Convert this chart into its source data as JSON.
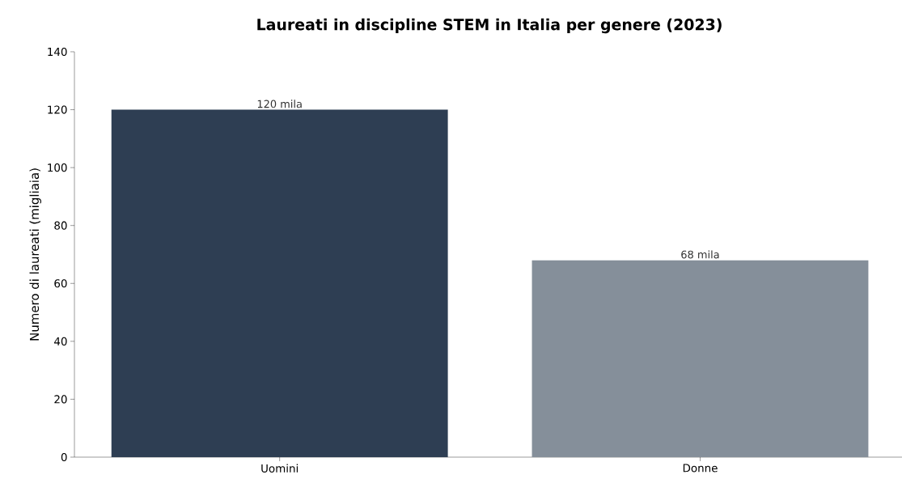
{
  "chart_data": {
    "type": "bar",
    "title": "Laureati in discipline STEM in Italia per genere (2023)",
    "ylabel": "Numero di laureati (migliaia)",
    "categories": [
      "Uomini",
      "Donne"
    ],
    "values": [
      120,
      68
    ],
    "colors": [
      "#2e3e53",
      "#858f9a"
    ],
    "value_labels": [
      "120 mila",
      "68 mila"
    ],
    "ylim": [
      0,
      140
    ],
    "yticks": [
      0,
      20,
      40,
      60,
      80,
      100,
      120,
      140
    ],
    "grid": false
  }
}
